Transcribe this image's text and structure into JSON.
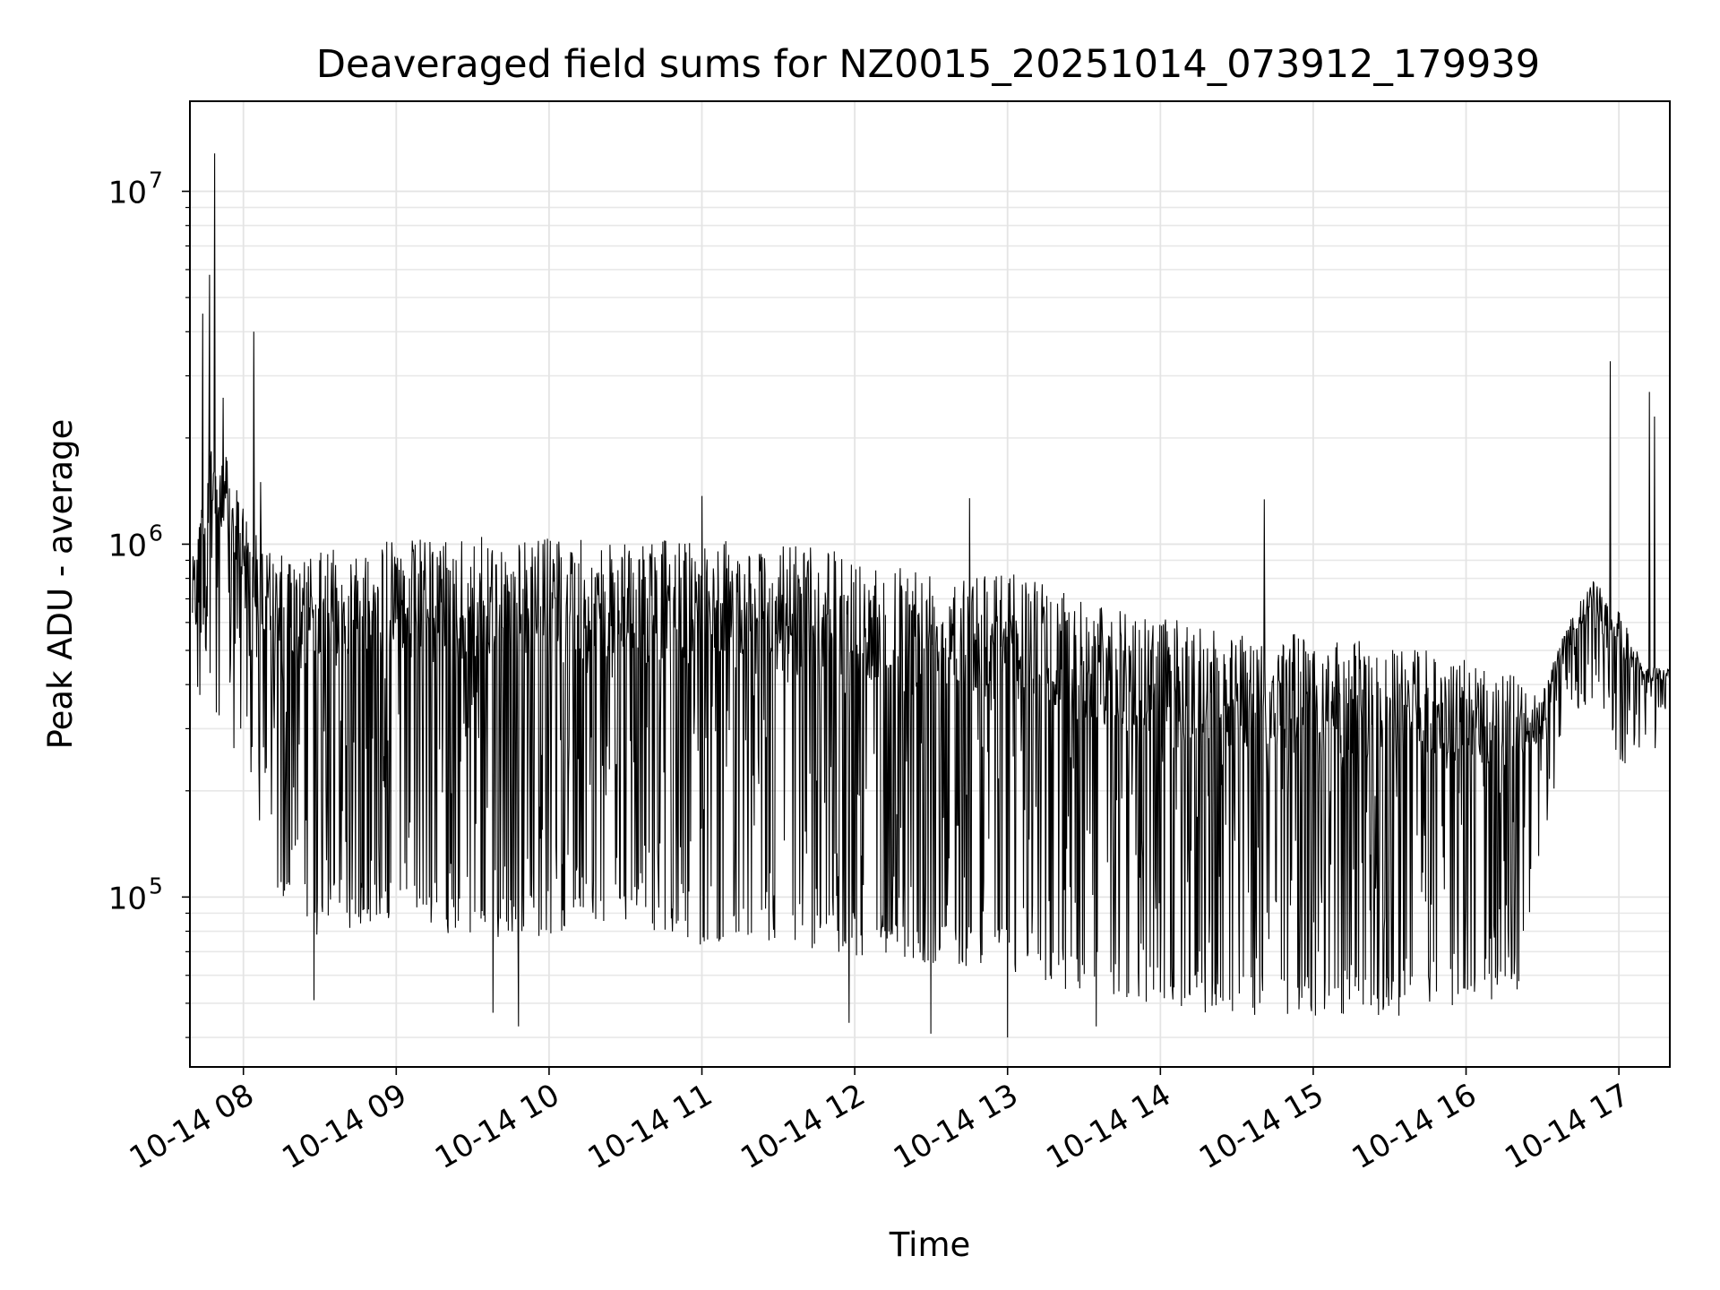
{
  "chart_data": {
    "type": "line",
    "title": "Deaveraged field sums for NZ0015_20251014_073912_179939",
    "xlabel": "Time",
    "ylabel": "Peak ADU - average",
    "yscale": "log",
    "xlim": [
      "2025-10-14 07:39",
      "2025-10-14 17:20"
    ],
    "ylim": [
      33000,
      18000000
    ],
    "grid": true,
    "grid_minor": true,
    "line_color": "#000000",
    "x_ticks": [
      "10-14 08",
      "10-14 09",
      "10-14 10",
      "10-14 11",
      "10-14 12",
      "10-14 13",
      "10-14 14",
      "10-14 15",
      "10-14 16",
      "10-14 17"
    ],
    "y_ticks": [
      {
        "base": "10",
        "exp": "5",
        "value": 100000
      },
      {
        "base": "10",
        "exp": "6",
        "value": 1000000
      },
      {
        "base": "10",
        "exp": "7",
        "value": 10000000
      }
    ],
    "envelope": {
      "x": [
        "07:40",
        "07:44",
        "07:48",
        "07:52",
        "07:56",
        "08:00",
        "08:04",
        "08:08",
        "08:12",
        "08:20",
        "08:30",
        "08:45",
        "09:00",
        "09:30",
        "10:00",
        "10:30",
        "11:00",
        "11:30",
        "12:00",
        "12:30",
        "13:00",
        "13:30",
        "14:00",
        "14:30",
        "15:00",
        "15:30",
        "16:00",
        "16:20",
        "16:30",
        "16:40",
        "16:50",
        "17:00",
        "17:10",
        "17:20"
      ],
      "typical_high": [
        900000,
        1500000,
        2200000,
        1900000,
        1500000,
        1300000,
        1100000,
        1000000,
        950000,
        900000,
        950000,
        1000000,
        1050000,
        1050000,
        1050000,
        1000000,
        1050000,
        1000000,
        950000,
        900000,
        850000,
        700000,
        620000,
        580000,
        550000,
        520000,
        480000,
        420000,
        380000,
        600000,
        800000,
        650000,
        450000,
        450000
      ],
      "typical_low": [
        550000,
        450000,
        420000,
        350000,
        320000,
        330000,
        280000,
        160000,
        130000,
        120000,
        100000,
        110000,
        110000,
        100000,
        100000,
        110000,
        95000,
        95000,
        90000,
        85000,
        80000,
        70000,
        65000,
        60000,
        60000,
        60000,
        65000,
        70000,
        180000,
        420000,
        450000,
        280000,
        330000,
        350000
      ],
      "spikes": [
        {
          "x": "07:44",
          "value": 4500000
        },
        {
          "x": "07:47",
          "value": 5800000
        },
        {
          "x": "07:49",
          "value": 12800000
        },
        {
          "x": "07:52",
          "value": 2600000
        },
        {
          "x": "08:04",
          "value": 4000000
        },
        {
          "x": "08:07",
          "value": 1500000
        },
        {
          "x": "11:00",
          "value": 1370000
        },
        {
          "x": "12:45",
          "value": 1350000
        },
        {
          "x": "14:41",
          "value": 1340000
        },
        {
          "x": "16:57",
          "value": 3300000
        },
        {
          "x": "17:12",
          "value": 2700000
        },
        {
          "x": "17:14",
          "value": 2300000
        }
      ],
      "dips": [
        {
          "x": "08:28",
          "value": 51000
        },
        {
          "x": "09:38",
          "value": 47000
        },
        {
          "x": "09:48",
          "value": 43000
        },
        {
          "x": "11:58",
          "value": 44000
        },
        {
          "x": "12:30",
          "value": 41000
        },
        {
          "x": "13:00",
          "value": 40000
        },
        {
          "x": "13:35",
          "value": 43000
        }
      ]
    }
  }
}
